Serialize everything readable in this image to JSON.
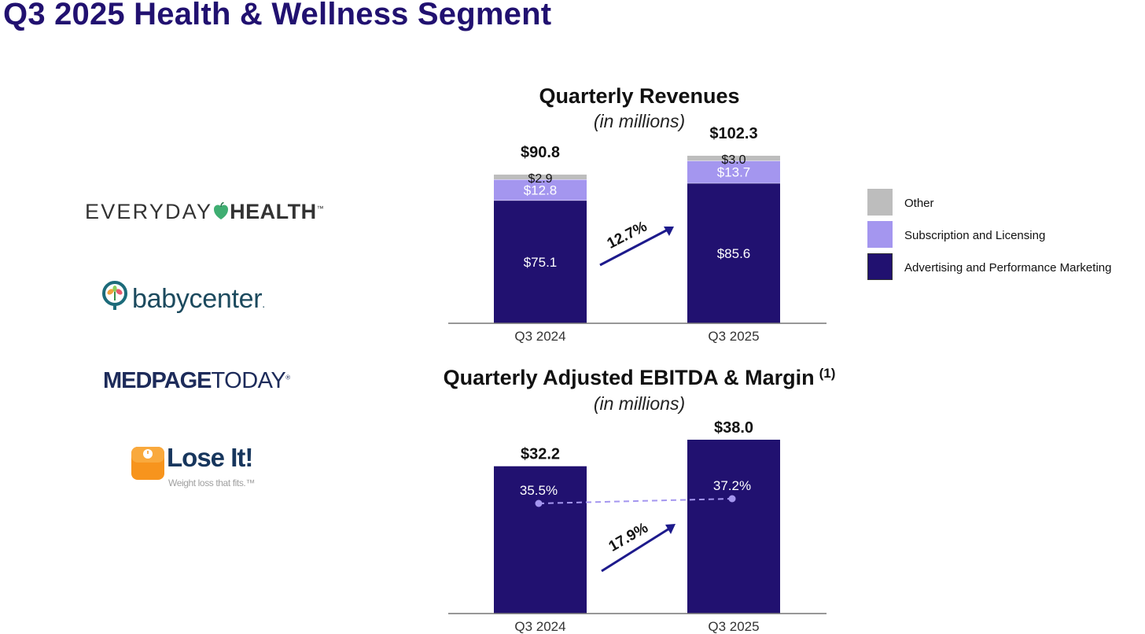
{
  "page": {
    "title": "Q3 2025 Health & Wellness Segment"
  },
  "logos": {
    "everyday_health": {
      "word1": "EVERYDAY",
      "word2": "HEALTH",
      "tm": "™"
    },
    "babycenter": {
      "text": "babycenter",
      "reg": "."
    },
    "medpage_today": {
      "word1": "MEDPAGE",
      "word2": "TODAY",
      "tm": "®"
    },
    "lose_it": {
      "name": "Lose It!",
      "tagline": "Weight loss that fits.™"
    }
  },
  "colors": {
    "title": "#211170",
    "advertising": "#211170",
    "subscription": "#a496ef",
    "other": "#bdbdbd",
    "margin_line": "#a496ef",
    "growth_arrow": "#1d1a8c"
  },
  "legend": {
    "items": [
      {
        "label": "Other",
        "color": "#bdbdbd"
      },
      {
        "label": "Subscription and Licensing",
        "color": "#a496ef"
      },
      {
        "label": "Advertising and Performance Marketing",
        "color": "#211170"
      }
    ]
  },
  "chart_data": [
    {
      "type": "bar",
      "stacked": true,
      "title": "Quarterly Revenues",
      "subtitle": "(in millions)",
      "categories": [
        "Q3 2024",
        "Q3 2025"
      ],
      "series": [
        {
          "name": "Advertising and Performance Marketing",
          "values": [
            75.1,
            85.6
          ],
          "labels": [
            "$75.1",
            "$85.6"
          ]
        },
        {
          "name": "Subscription and Licensing",
          "values": [
            12.8,
            13.7
          ],
          "labels": [
            "$12.8",
            "$13.7"
          ]
        },
        {
          "name": "Other",
          "values": [
            2.9,
            3.0
          ],
          "labels": [
            "$2.9",
            "$3.0"
          ]
        }
      ],
      "totals": [
        90.8,
        102.3
      ],
      "total_labels": [
        "$90.8",
        "$102.3"
      ],
      "growth_label": "12.7%",
      "ylim": [
        0,
        102.3
      ],
      "legend_position": "right"
    },
    {
      "type": "bar",
      "title": "Quarterly Adjusted EBITDA & Margin",
      "title_footnote": "(1)",
      "subtitle": "(in millions)",
      "categories": [
        "Q3 2024",
        "Q3 2025"
      ],
      "values": [
        32.2,
        38.0
      ],
      "value_labels": [
        "$32.2",
        "$38.0"
      ],
      "margin_line": {
        "name": "Margin",
        "values": [
          35.5,
          37.2
        ],
        "labels": [
          "35.5%",
          "37.2%"
        ]
      },
      "growth_label": "17.9%",
      "ylim": [
        0,
        38.0
      ]
    }
  ]
}
